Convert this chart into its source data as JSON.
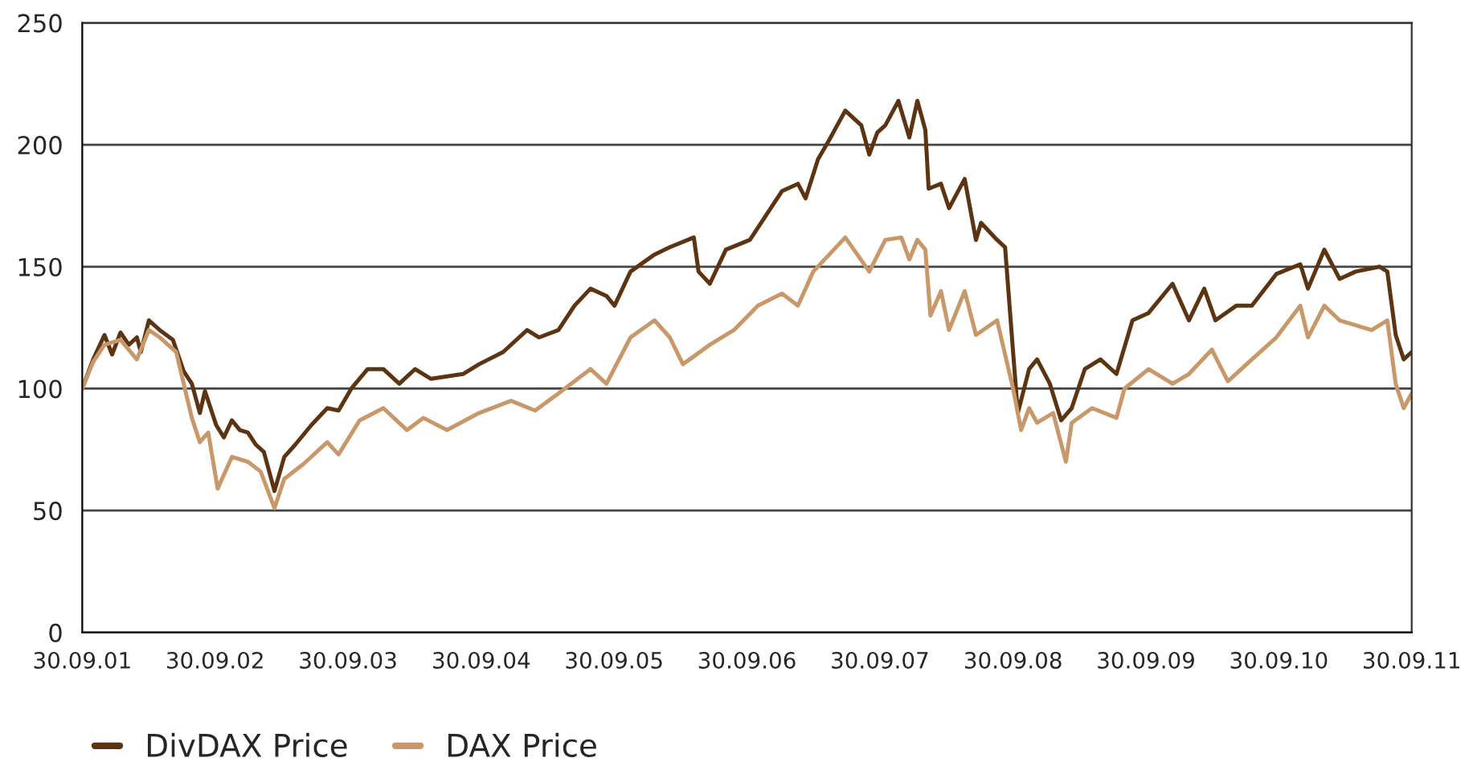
{
  "chart_data": {
    "type": "line",
    "series": [
      {
        "name": "DivDAX Price",
        "color": "#5c3412",
        "x": [
          "2001-09-30",
          "2001-10-30",
          "2001-11-30",
          "2001-12-21",
          "2002-01-13",
          "2002-02-05",
          "2002-02-27",
          "2002-03-10",
          "2002-04-01",
          "2002-05-01",
          "2002-06-06",
          "2002-07-06",
          "2002-07-28",
          "2002-08-19",
          "2002-09-02",
          "2002-10-03",
          "2002-10-24",
          "2002-11-15",
          "2002-12-07",
          "2002-12-29",
          "2003-01-20",
          "2003-02-11",
          "2003-03-12",
          "2003-04-08",
          "2003-05-08",
          "2003-06-21",
          "2003-08-04",
          "2003-09-04",
          "2003-10-09",
          "2003-11-23",
          "2004-01-05",
          "2004-02-18",
          "2004-04-01",
          "2004-05-15",
          "2004-08-11",
          "2004-09-24",
          "2004-11-29",
          "2005-02-03",
          "2005-03-08",
          "2005-04-30",
          "2005-06-13",
          "2005-07-27",
          "2005-09-09",
          "2005-10-01",
          "2005-11-14",
          "2006-01-19",
          "2006-03-02",
          "2006-05-07",
          "2006-05-20",
          "2006-06-20",
          "2006-08-03",
          "2006-10-08",
          "2006-11-21",
          "2007-01-04",
          "2007-02-17",
          "2007-03-10",
          "2007-04-13",
          "2007-05-14",
          "2007-06-27",
          "2007-08-10",
          "2007-09-01",
          "2007-09-23",
          "2007-10-15",
          "2007-11-20",
          "2007-12-20",
          "2008-01-11",
          "2008-01-24",
          "2008-02-02",
          "2008-02-11",
          "2008-03-16",
          "2008-04-07",
          "2008-05-20",
          "2008-06-20",
          "2008-07-04",
          "2008-08-17",
          "2008-09-08",
          "2008-09-30",
          "2008-10-13",
          "2008-11-13",
          "2008-12-05",
          "2009-01-09",
          "2009-02-09",
          "2009-03-10",
          "2009-04-15",
          "2009-05-28",
          "2009-07-11",
          "2009-08-24",
          "2009-10-07",
          "2009-12-12",
          "2010-01-26",
          "2010-03-09",
          "2010-04-09",
          "2010-06-05",
          "2010-07-18",
          "2010-09-23",
          "2010-11-28",
          "2010-12-19",
          "2011-02-02",
          "2011-03-16",
          "2011-04-29",
          "2011-07-04",
          "2011-07-25",
          "2011-08-17",
          "2011-09-08",
          "2011-09-30"
        ],
        "values": [
          100,
          112,
          122,
          114,
          123,
          118,
          121,
          115,
          128,
          124,
          120,
          107,
          102,
          90,
          99,
          85,
          80,
          87,
          83,
          82,
          77,
          74,
          58,
          72,
          77,
          85,
          92,
          91,
          100,
          108,
          108,
          102,
          108,
          104,
          106,
          110,
          115,
          124,
          121,
          124,
          134,
          141,
          138,
          134,
          148,
          155,
          158,
          162,
          148,
          143,
          157,
          161,
          171,
          181,
          184,
          178,
          194,
          202,
          214,
          208,
          196,
          205,
          208,
          218,
          203,
          218,
          211,
          206,
          182,
          184,
          174,
          186,
          161,
          168,
          161,
          158,
          115,
          90,
          108,
          112,
          102,
          87,
          92,
          108,
          112,
          106,
          128,
          131,
          143,
          128,
          141,
          128,
          134,
          134,
          147,
          151,
          141,
          157,
          145,
          148,
          150,
          148,
          122,
          112,
          115
        ]
      },
      {
        "name": "DAX Price",
        "color": "#c9986a",
        "x": [
          "2001-09-30",
          "2001-10-30",
          "2001-11-30",
          "2002-01-13",
          "2002-02-27",
          "2002-04-01",
          "2002-05-01",
          "2002-06-15",
          "2002-07-28",
          "2002-08-19",
          "2002-09-11",
          "2002-10-07",
          "2002-11-15",
          "2002-12-29",
          "2003-02-02",
          "2003-03-12",
          "2003-04-08",
          "2003-05-30",
          "2003-08-04",
          "2003-09-04",
          "2003-11-01",
          "2004-01-05",
          "2004-03-10",
          "2004-04-24",
          "2004-06-28",
          "2004-09-24",
          "2004-12-21",
          "2005-02-25",
          "2005-04-30",
          "2005-07-27",
          "2005-09-09",
          "2005-11-14",
          "2006-01-19",
          "2006-03-02",
          "2006-04-07",
          "2006-06-20",
          "2006-08-25",
          "2006-10-30",
          "2007-01-04",
          "2007-02-17",
          "2007-03-31",
          "2007-05-14",
          "2007-06-27",
          "2007-09-01",
          "2007-10-15",
          "2007-11-28",
          "2007-12-20",
          "2008-01-11",
          "2008-02-02",
          "2008-02-16",
          "2008-03-16",
          "2008-04-07",
          "2008-05-20",
          "2008-06-20",
          "2008-08-17",
          "2008-09-30",
          "2008-10-22",
          "2008-11-13",
          "2008-12-05",
          "2009-01-18",
          "2009-02-22",
          "2009-03-10",
          "2009-05-05",
          "2009-07-11",
          "2009-08-02",
          "2009-10-07",
          "2009-12-12",
          "2010-01-26",
          "2010-03-30",
          "2010-05-13",
          "2010-07-18",
          "2010-09-23",
          "2010-11-28",
          "2010-12-19",
          "2011-02-02",
          "2011-03-16",
          "2011-06-12",
          "2011-07-25",
          "2011-08-17",
          "2011-09-08",
          "2011-09-30"
        ],
        "values": [
          100,
          111,
          118,
          120,
          112,
          124,
          121,
          115,
          88,
          78,
          82,
          59,
          72,
          70,
          66,
          51,
          63,
          69,
          78,
          73,
          87,
          92,
          83,
          88,
          83,
          90,
          95,
          91,
          98,
          108,
          102,
          121,
          128,
          121,
          110,
          118,
          124,
          134,
          139,
          134,
          148,
          155,
          162,
          148,
          161,
          162,
          153,
          161,
          157,
          130,
          140,
          124,
          140,
          122,
          128,
          100,
          83,
          92,
          86,
          90,
          70,
          86,
          92,
          88,
          100,
          108,
          102,
          106,
          116,
          103,
          112,
          121,
          134,
          121,
          134,
          128,
          124,
          128,
          102,
          92,
          98
        ]
      }
    ],
    "xlim": [
      "2001-09-30",
      "2011-09-30"
    ],
    "xticks": [
      {
        "value": "2001-09-30",
        "label": "30.09.01"
      },
      {
        "value": "2002-09-30",
        "label": "30.09.02"
      },
      {
        "value": "2003-09-30",
        "label": "30.09.03"
      },
      {
        "value": "2004-09-30",
        "label": "30.09.04"
      },
      {
        "value": "2005-09-30",
        "label": "30.09.05"
      },
      {
        "value": "2006-09-30",
        "label": "30.09.06"
      },
      {
        "value": "2007-09-30",
        "label": "30.09.07"
      },
      {
        "value": "2008-09-30",
        "label": "30.09.08"
      },
      {
        "value": "2009-09-30",
        "label": "30.09.09"
      },
      {
        "value": "2010-09-30",
        "label": "30.09.10"
      },
      {
        "value": "2011-09-30",
        "label": "30.09.11"
      }
    ],
    "ylim": [
      0,
      250
    ],
    "yticks": [
      0,
      50,
      100,
      150,
      200,
      250
    ],
    "grid": "y",
    "legend": "bottom left",
    "line_style": "solid",
    "marker": "none"
  }
}
